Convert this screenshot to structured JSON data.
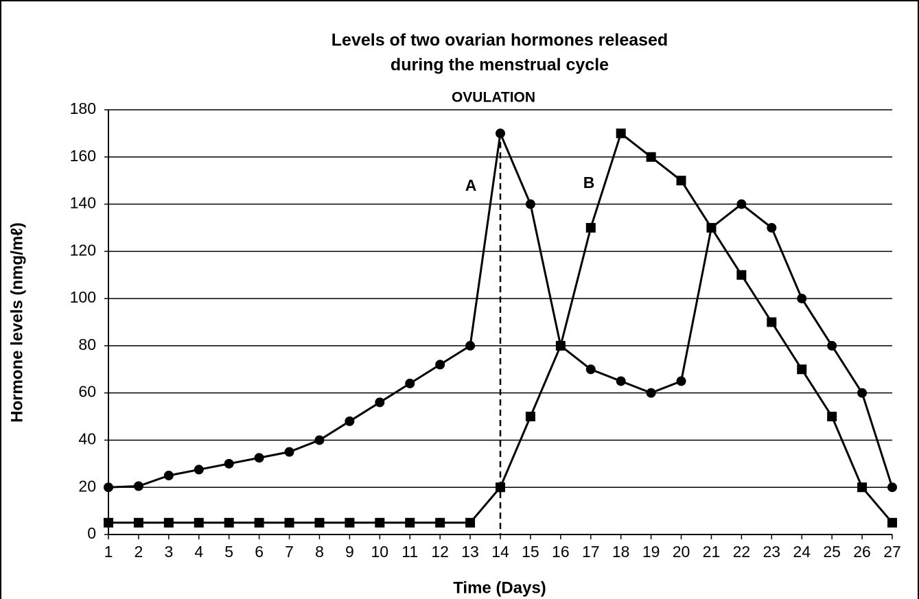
{
  "chart_data": {
    "type": "line",
    "title": [
      "Levels of two ovarian hormones released",
      "during the menstrual cycle"
    ],
    "xlabel": "Time (Days)",
    "ylabel": "Hormone levels (nmg/mℓ)",
    "x": [
      1,
      2,
      3,
      4,
      5,
      6,
      7,
      8,
      9,
      10,
      11,
      12,
      13,
      14,
      15,
      16,
      17,
      18,
      19,
      20,
      21,
      22,
      23,
      24,
      25,
      26,
      27
    ],
    "series": [
      {
        "name": "A",
        "color": "#000000",
        "marker": "circle",
        "values": [
          20,
          20.5,
          25,
          27.5,
          30,
          32.5,
          35,
          40,
          48,
          56,
          64,
          72,
          80,
          170,
          140,
          80,
          70,
          65,
          60,
          65,
          130,
          140,
          130,
          100,
          80,
          60,
          20
        ]
      },
      {
        "name": "B",
        "color": "#000000",
        "marker": "square",
        "values": [
          5,
          5,
          5,
          5,
          5,
          5,
          5,
          5,
          5,
          5,
          5,
          5,
          5,
          20,
          50,
          80,
          130,
          170,
          160,
          150,
          130,
          110,
          90,
          70,
          50,
          20,
          5
        ]
      }
    ],
    "ovulation": {
      "label": "OVULATION",
      "x": 14
    },
    "xlim": [
      1,
      27
    ],
    "xticks": [
      1,
      2,
      3,
      4,
      5,
      6,
      7,
      8,
      9,
      10,
      11,
      12,
      13,
      14,
      15,
      16,
      17,
      18,
      19,
      20,
      21,
      22,
      23,
      24,
      25,
      26,
      27
    ],
    "ylim": [
      0,
      180
    ],
    "yticks": [
      0,
      20,
      40,
      60,
      80,
      100,
      120,
      140,
      160,
      180
    ],
    "grid": true
  }
}
